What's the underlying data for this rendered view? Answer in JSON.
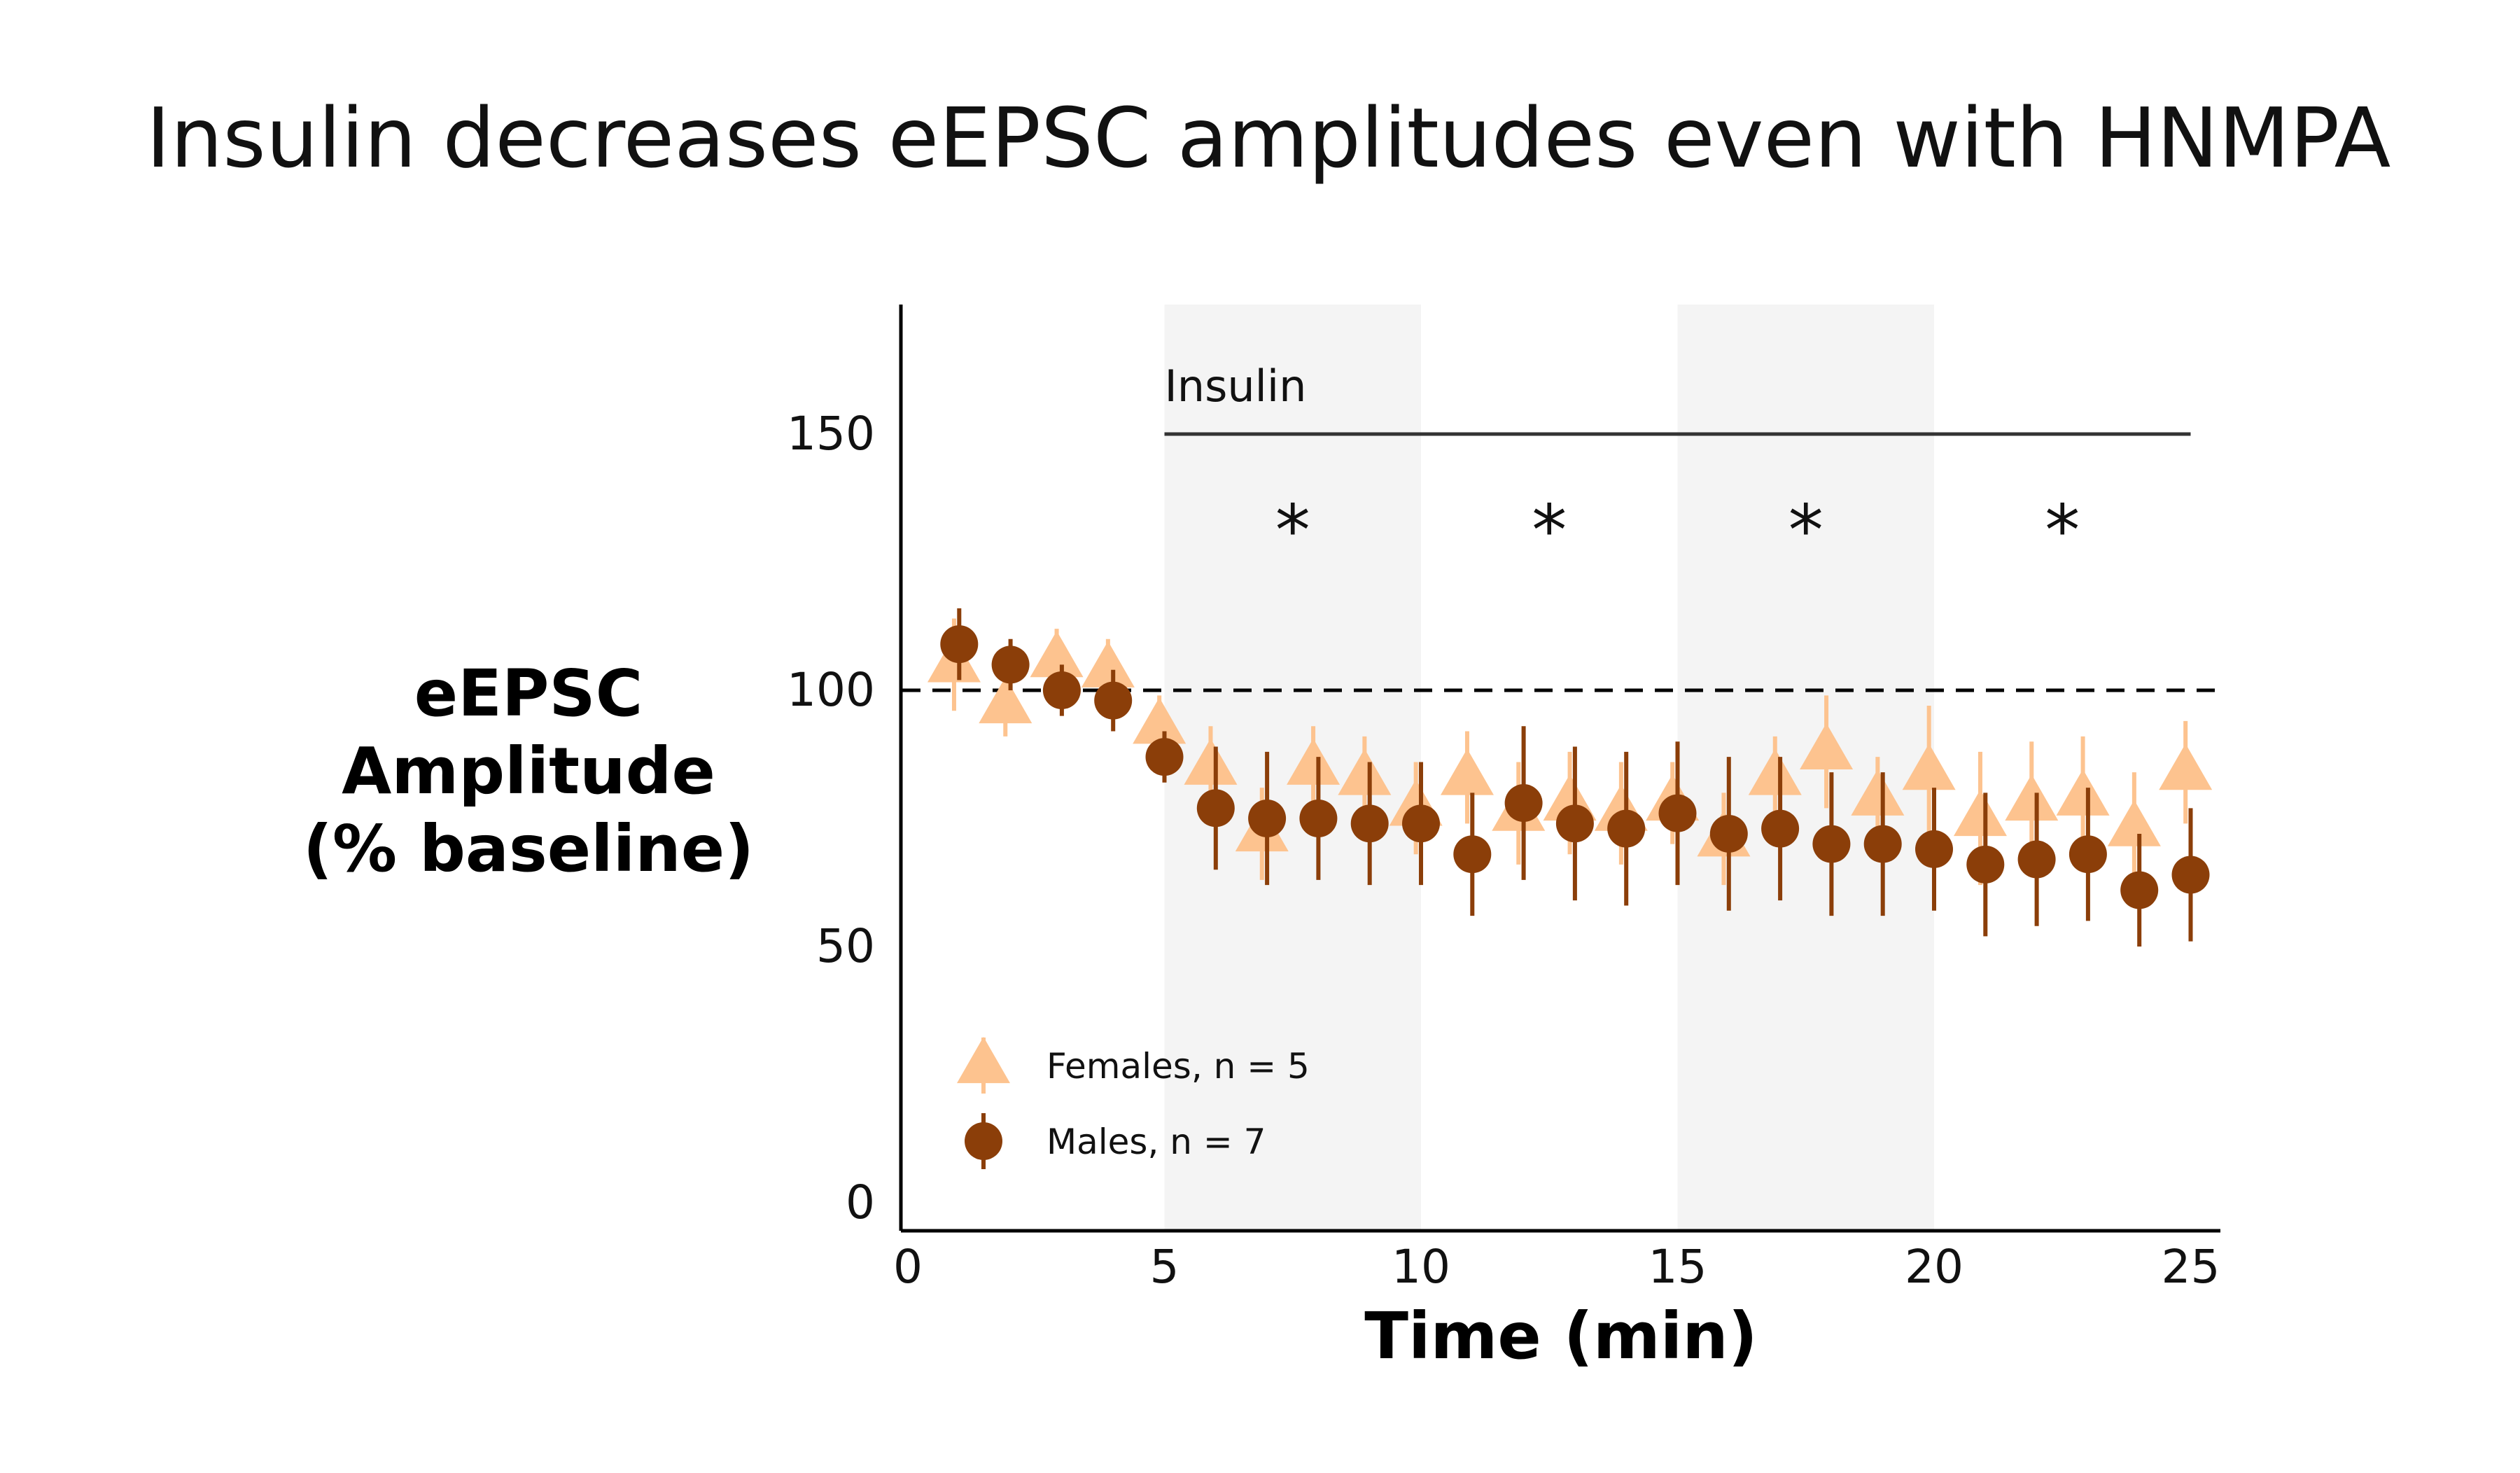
{
  "chart_data": {
    "type": "scatter",
    "title": "Insulin decreases eEPSC amplitudes even with HNMPA",
    "xlabel": "Time (min)",
    "ylabel_lines": [
      "eEPSC",
      "Amplitude",
      "(% baseline)"
    ],
    "xlim": [
      0,
      25.5
    ],
    "ylim": [
      -5,
      175
    ],
    "xticks": [
      0,
      5,
      10,
      15,
      20,
      25
    ],
    "xtick_labels": [
      "0",
      "5",
      "10",
      "15",
      "20",
      "25"
    ],
    "yticks": [
      0,
      50,
      100,
      150
    ],
    "ytick_labels": [
      "0",
      "50",
      "100",
      "150"
    ],
    "reference_line": {
      "y": 100,
      "style": "dashed"
    },
    "shaded_regions": [
      [
        5,
        10
      ],
      [
        15,
        20
      ]
    ],
    "shade_color": "#f4f4f4",
    "treatment": {
      "label": "Insulin",
      "x_start": 5,
      "x_end": 25,
      "y": 150
    },
    "significance": {
      "symbol": "*",
      "x": [
        7.5,
        12.5,
        17.5,
        22.5
      ],
      "y": 135
    },
    "legend_position": "bottom-left",
    "series": [
      {
        "name": "Females, n = 5",
        "marker": "triangle",
        "color": "#fdc38f",
        "x": [
          1,
          2,
          3,
          4,
          5,
          6,
          7,
          8,
          9,
          10,
          11,
          12,
          13,
          14,
          15,
          16,
          17,
          18,
          19,
          20,
          21,
          22,
          23,
          24,
          25
        ],
        "y": [
          105,
          97,
          106,
          104,
          93,
          85,
          72,
          85,
          83,
          77,
          83,
          76,
          78,
          76,
          78,
          71,
          83,
          88,
          79,
          84,
          75,
          78,
          79,
          73,
          84
        ],
        "err": [
          9,
          6,
          6,
          6,
          6,
          8,
          9,
          8,
          8,
          9,
          9,
          10,
          10,
          10,
          8,
          9,
          8,
          11,
          8,
          13,
          13,
          12,
          12,
          11,
          10
        ]
      },
      {
        "name": "Males, n = 7",
        "marker": "circle",
        "color": "#8b3e09",
        "x": [
          1,
          2,
          3,
          4,
          5,
          6,
          7,
          8,
          9,
          10,
          11,
          12,
          13,
          14,
          15,
          16,
          17,
          18,
          19,
          20,
          21,
          22,
          23,
          24,
          25
        ],
        "y": [
          109,
          105,
          100,
          98,
          87,
          77,
          75,
          75,
          74,
          74,
          68,
          78,
          74,
          73,
          76,
          72,
          73,
          70,
          70,
          69,
          66,
          67,
          68,
          61,
          64
        ]
      }
    ]
  }
}
